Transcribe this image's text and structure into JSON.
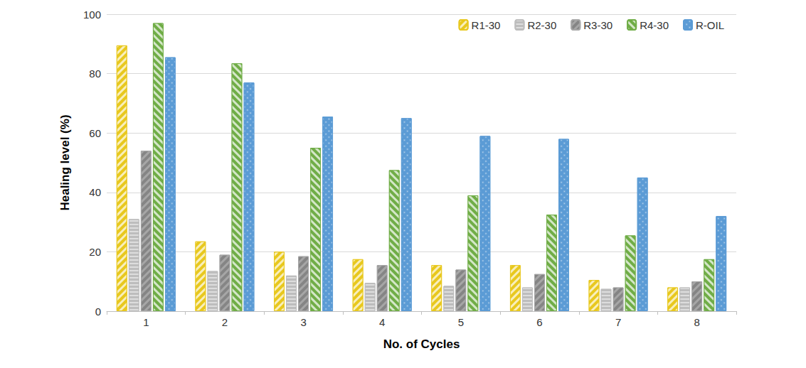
{
  "chart_data": {
    "type": "bar",
    "x_label": "No. of Cycles",
    "y_label": "Healing level (%)",
    "categories": [
      "1",
      "2",
      "3",
      "4",
      "5",
      "6",
      "7",
      "8"
    ],
    "series": [
      {
        "name": "R1-30",
        "color": "#e8c81e",
        "values": [
          89.5,
          23.5,
          20,
          17.5,
          15.5,
          15.5,
          10.5,
          8
        ]
      },
      {
        "name": "R2-30",
        "color": "#bdbdbd",
        "values": [
          31,
          13.5,
          12,
          9.5,
          8.5,
          8,
          7.5,
          8
        ]
      },
      {
        "name": "R3-30",
        "color": "#a6a6a6",
        "values": [
          54,
          19,
          18.5,
          15.5,
          14,
          12.5,
          8,
          10
        ]
      },
      {
        "name": "R4-30",
        "color": "#70ad47",
        "values": [
          97,
          83.5,
          55,
          47.5,
          39,
          32.5,
          25.5,
          17.5
        ]
      },
      {
        "name": "R-OIL",
        "color": "#5b9bd5",
        "values": [
          85.5,
          77,
          65.5,
          65,
          59,
          58,
          45,
          32
        ]
      }
    ],
    "ylim": [
      0,
      100
    ],
    "yticks": [
      0,
      20,
      40,
      60,
      80,
      100
    ],
    "grid": true,
    "legend": "top-right"
  }
}
